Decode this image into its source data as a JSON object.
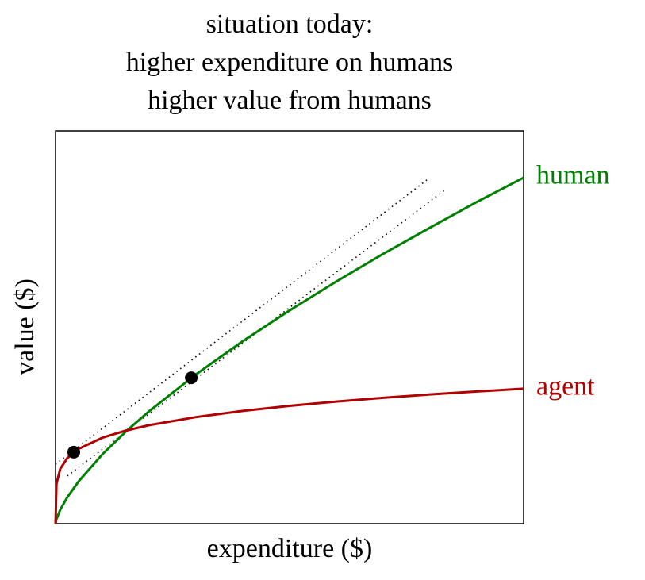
{
  "chart_data": {
    "type": "line",
    "title": [
      "situation today:",
      "higher expenditure on humans",
      "higher value from humans"
    ],
    "xlabel": "expenditure ($)",
    "ylabel": "value ($)",
    "xlim": [
      0,
      10
    ],
    "ylim": [
      0,
      8.4
    ],
    "x": [
      0,
      0.02,
      0.1,
      0.25,
      0.5,
      1,
      1.5,
      2,
      3,
      4,
      5,
      6,
      7,
      8,
      9,
      10
    ],
    "series": [
      {
        "name": "human",
        "color": "#008000",
        "values": [
          0,
          0.097,
          0.297,
          0.563,
          0.913,
          1.483,
          1.968,
          2.405,
          3.193,
          3.903,
          4.56,
          5.18,
          5.77,
          6.33,
          6.88,
          7.4
        ]
      },
      {
        "name": "agent",
        "color": "#b00000",
        "values": [
          0,
          0.853,
          1.171,
          1.401,
          1.604,
          1.838,
          1.99,
          2.106,
          2.279,
          2.412,
          2.52,
          2.612,
          2.691,
          2.763,
          2.827,
          2.886
        ]
      }
    ],
    "tangents": [
      {
        "x": [
          0,
          7.97
        ],
        "y": [
          1.27,
          7.38
        ]
      },
      {
        "x": [
          0.25,
          8.31
        ],
        "y": [
          1.02,
          7.13
        ]
      }
    ],
    "points": {
      "x": [
        0.39,
        2.9
      ],
      "y": [
        1.53,
        3.12
      ],
      "color": "#000000"
    }
  }
}
